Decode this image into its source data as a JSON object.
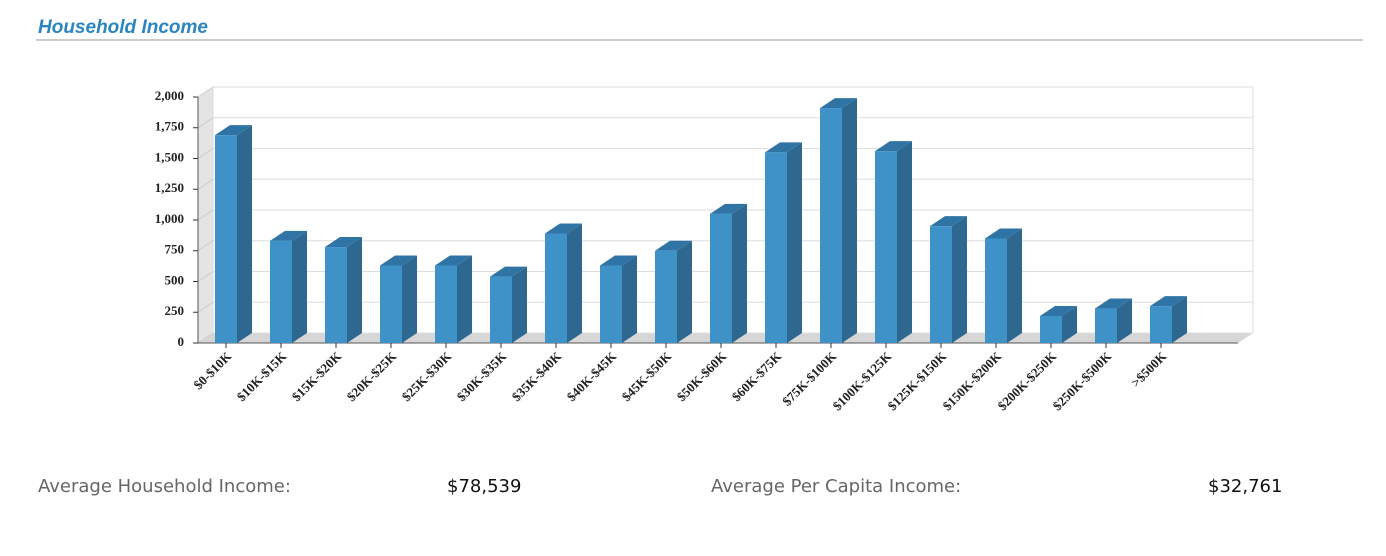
{
  "chart_data": {
    "type": "bar3d",
    "title": "Household Income",
    "categories": [
      "$0-$10K",
      "$10K-$15K",
      "$15K-$20K",
      "$20K-$25K",
      "$25K-$30K",
      "$30K-$35K",
      "$35K-$40K",
      "$40K-$45K",
      "$45K-$50K",
      "$50K-$60K",
      "$60K-$75K",
      "$75K-$100K",
      "$100K-$125K",
      "$125K-$150K",
      "$150K-$200K",
      "$200K-$250K",
      "$250K-$500K",
      ">$500K"
    ],
    "values": [
      1690,
      830,
      780,
      630,
      630,
      540,
      890,
      630,
      750,
      1050,
      1550,
      1910,
      1560,
      950,
      850,
      220,
      280,
      300
    ],
    "color": "#3f92c8",
    "ylim": [
      0,
      2000
    ],
    "yticks": [
      0,
      250,
      500,
      750,
      {
        "value": 1000,
        "label": "1,000"
      },
      {
        "value": 1250,
        "label": "1,250"
      },
      {
        "value": 1500,
        "label": "1,500"
      },
      {
        "value": 1750,
        "label": "1,750"
      },
      {
        "value": 2000,
        "label": "2,000"
      }
    ],
    "grid": true
  },
  "stats": [
    {
      "label": "Average Household Income:",
      "value": "$78,539"
    },
    {
      "label": "Average Per Capita Income:",
      "value": "$32,761"
    }
  ]
}
